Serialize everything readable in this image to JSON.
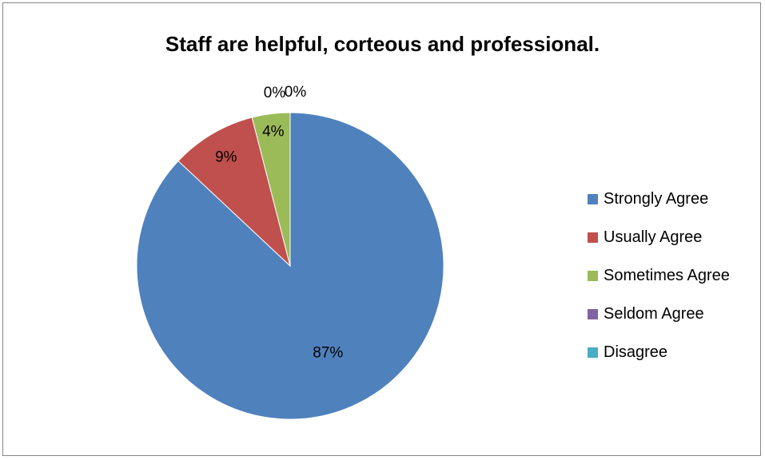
{
  "chart_data": {
    "type": "pie",
    "title": "Staff are helpful, corteous and professional.",
    "categories": [
      "Strongly Agree",
      "Usually Agree",
      "Sometimes Agree",
      "Seldom Agree",
      "Disagree"
    ],
    "values": [
      87,
      9,
      4,
      0,
      0
    ],
    "data_labels": [
      "87%",
      "9%",
      "4%",
      "0%",
      "0%"
    ],
    "colors": [
      "#4F81BD",
      "#C0504D",
      "#9BBB59",
      "#8064A2",
      "#4BACC6"
    ],
    "legend_position": "right"
  }
}
